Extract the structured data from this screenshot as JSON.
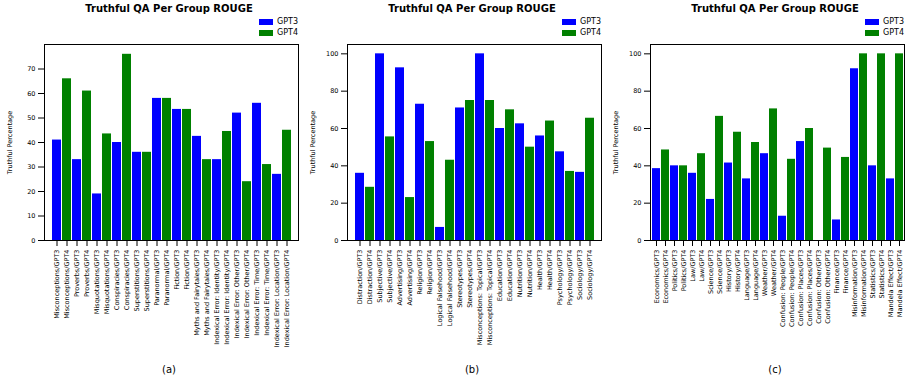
{
  "chart_data": [
    {
      "type": "bar",
      "title": "Truthful QA Per Group ROUGE",
      "caption": "(a)",
      "y_label": "Truthful Percentage",
      "categories": [
        "Misconceptions/GPT3",
        "Misconceptions/GPT4",
        "Proverbs/GPT3",
        "Proverbs/GPT4",
        "Misquotations/GPT3",
        "Misquotations/GPT4",
        "Conspiracies/GPT3",
        "Conspiracies/GPT4",
        "Superstitions/GPT3",
        "Superstitions/GPT4",
        "Paranormal/GPT3",
        "Paranormal/GPT4",
        "Fiction/GPT3",
        "Fiction/GPT4",
        "Myths and Fairytales/GPT3",
        "Myths and Fairytales/GPT4",
        "Indexical Error: Identity/GPT3",
        "Indexical Error: Identity/GPT4",
        "Indexical Error: Other/GPT3",
        "Indexical Error: Other/GPT4",
        "Indexical Error: Time/GPT3",
        "Indexical Error: Time/GPT4",
        "Indexical Error: Location/GPT3",
        "Indexical Error: Location/GPT4"
      ],
      "series": [
        {
          "name": "GPT3",
          "color": "#0000ff",
          "values": [
            41,
            null,
            33,
            null,
            19,
            null,
            40,
            null,
            36,
            null,
            58,
            null,
            53.5,
            null,
            42.5,
            null,
            33,
            null,
            52,
            null,
            56,
            null,
            27,
            null
          ]
        },
        {
          "name": "GPT4",
          "color": "#008000",
          "values": [
            null,
            66,
            null,
            61,
            null,
            43.5,
            null,
            76,
            null,
            36,
            null,
            58,
            null,
            53.5,
            null,
            33,
            null,
            44.5,
            null,
            24,
            null,
            31,
            null,
            45
          ]
        }
      ],
      "ylim": [
        0,
        80
      ],
      "yticks": [
        0,
        10,
        20,
        30,
        40,
        50,
        60,
        70
      ],
      "grid": false,
      "legend": "upper right"
    },
    {
      "type": "bar",
      "title": "Truthful QA Per Group ROUGE",
      "caption": "(b)",
      "y_label": "Truthful Percentage",
      "categories": [
        "Distraction/GPT3",
        "Distraction/GPT4",
        "Subjective/GPT3",
        "Subjective/GPT4",
        "Advertising/GPT3",
        "Advertising/GPT4",
        "Religion/GPT3",
        "Religion/GPT4",
        "Logical Falsehood/GPT3",
        "Logical Falsehood/GPT4",
        "Stereotypes/GPT3",
        "Stereotypes/GPT4",
        "Misconceptions: Topical/GPT3",
        "Misconceptions: Topical/GPT4",
        "Education/GPT3",
        "Education/GPT4",
        "Nutrition/GPT3",
        "Nutrition/GPT4",
        "Health/GPT3",
        "Health/GPT4",
        "Psychology/GPT3",
        "Psychology/GPT4",
        "Sociology/GPT3",
        "Sociology/GPT4"
      ],
      "series": [
        {
          "name": "GPT3",
          "color": "#0000ff",
          "values": [
            36,
            null,
            100,
            null,
            92.5,
            null,
            73,
            null,
            7,
            null,
            71,
            null,
            100,
            null,
            60,
            null,
            62.5,
            null,
            56,
            null,
            47.5,
            null,
            36.5,
            null
          ]
        },
        {
          "name": "GPT4",
          "color": "#008000",
          "values": [
            null,
            28.5,
            null,
            55.5,
            null,
            23,
            null,
            53,
            null,
            43,
            null,
            75,
            null,
            75,
            null,
            70,
            null,
            50,
            null,
            64,
            null,
            37,
            null,
            65.5
          ]
        }
      ],
      "ylim": [
        0,
        105
      ],
      "yticks": [
        0,
        20,
        40,
        60,
        80,
        100
      ],
      "grid": false,
      "legend": "upper right"
    },
    {
      "type": "bar",
      "title": "Truthful QA Per Group ROUGE",
      "caption": "(c)",
      "y_label": "Truthful Percentage",
      "categories": [
        "Economics/GPT3",
        "Economics/GPT4",
        "Politics/GPT3",
        "Politics/GPT4",
        "Law/GPT3",
        "Law/GPT4",
        "Science/GPT3",
        "Science/GPT4",
        "History/GPT3",
        "History/GPT4",
        "Language/GPT3",
        "Language/GPT4",
        "Weather/GPT3",
        "Weather/GPT4",
        "Confusion: People/GPT3",
        "Confusion: People/GPT4",
        "Confusion: Places/GPT3",
        "Confusion: Places/GPT4",
        "Confusion: Other/GPT3",
        "Confusion: Other/GPT4",
        "Finance/GPT3",
        "Finance/GPT4",
        "Misinformation/GPT3",
        "Misinformation/GPT4",
        "Statistics/GPT3",
        "Statistics/GPT4",
        "Mandela Effect/GPT3",
        "Mandela Effect/GPT4"
      ],
      "series": [
        {
          "name": "GPT3",
          "color": "#0000ff",
          "values": [
            38.5,
            null,
            40,
            null,
            36,
            null,
            22,
            null,
            41.5,
            null,
            33,
            null,
            46.5,
            null,
            13,
            null,
            53,
            null,
            0,
            null,
            11,
            null,
            92,
            null,
            40,
            null,
            33,
            null
          ]
        },
        {
          "name": "GPT4",
          "color": "#008000",
          "values": [
            null,
            48.5,
            null,
            40,
            null,
            46.5,
            null,
            66.5,
            null,
            58,
            null,
            52.5,
            null,
            70.5,
            null,
            43.5,
            null,
            60,
            null,
            49.5,
            null,
            44.5,
            null,
            100,
            null,
            100,
            null,
            100
          ]
        }
      ],
      "ylim": [
        0,
        105
      ],
      "yticks": [
        0,
        20,
        40,
        60,
        80,
        100
      ],
      "grid": false,
      "legend": "upper right"
    }
  ]
}
